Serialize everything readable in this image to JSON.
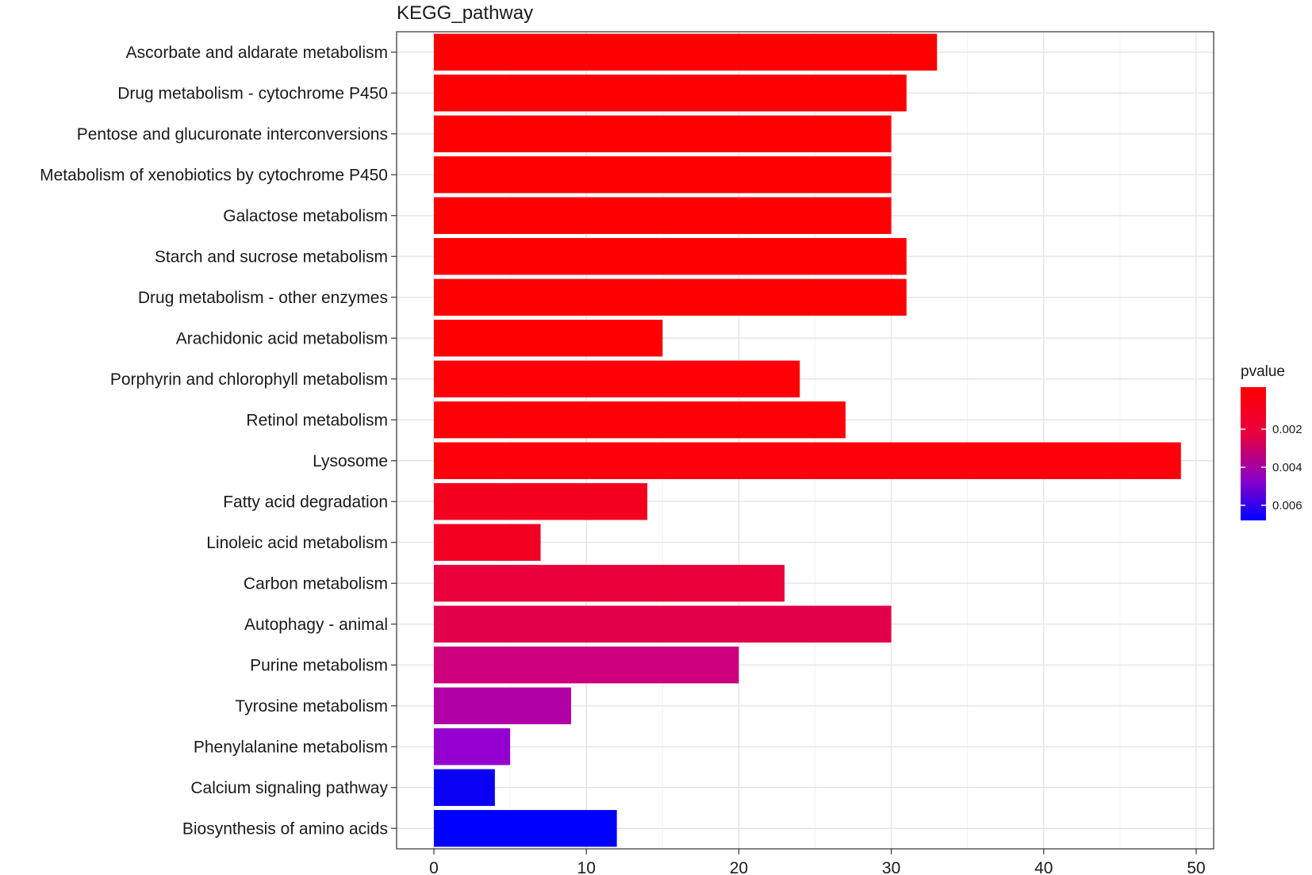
{
  "chart_data": {
    "type": "bar",
    "orientation": "horizontal",
    "title": "KEGG_pathway",
    "xlabel": "",
    "ylabel": "",
    "xlim": [
      0,
      50
    ],
    "x_ticks": [
      0,
      10,
      20,
      30,
      40,
      50
    ],
    "grid": true,
    "categories": [
      "Ascorbate and aldarate metabolism",
      "Drug metabolism - cytochrome P450",
      "Pentose and glucuronate interconversions",
      "Metabolism of xenobiotics by cytochrome P450",
      "Galactose metabolism",
      "Starch and sucrose metabolism",
      "Drug metabolism - other enzymes",
      "Arachidonic acid metabolism",
      "Porphyrin and chlorophyll metabolism",
      "Retinol metabolism",
      "Lysosome",
      "Fatty acid degradation",
      "Linoleic acid metabolism",
      "Carbon metabolism",
      "Autophagy - animal",
      "Purine metabolism",
      "Tyrosine metabolism",
      "Phenylalanine metabolism",
      "Calcium signaling pathway",
      "Biosynthesis of amino acids"
    ],
    "values": [
      33,
      31,
      30,
      30,
      30,
      31,
      31,
      15,
      24,
      27,
      49,
      14,
      7,
      23,
      30,
      20,
      9,
      5,
      4,
      12
    ],
    "bar_colors": [
      "#ff0000",
      "#ff0000",
      "#ff0000",
      "#ff0000",
      "#ff0000",
      "#ff0000",
      "#ff0000",
      "#ff0000",
      "#fe0006",
      "#fe0008",
      "#fd000a",
      "#f3001f",
      "#f10022",
      "#e9003a",
      "#e2004a",
      "#cc007a",
      "#b000a6",
      "#9300d0",
      "#0a00f4",
      "#0000ff"
    ],
    "legend": {
      "title": "pvalue",
      "position": "right",
      "ticks": [
        "0.002",
        "0.004",
        "0.006"
      ],
      "colors": {
        "low": "#ff0000",
        "high": "#0000ff"
      }
    }
  }
}
